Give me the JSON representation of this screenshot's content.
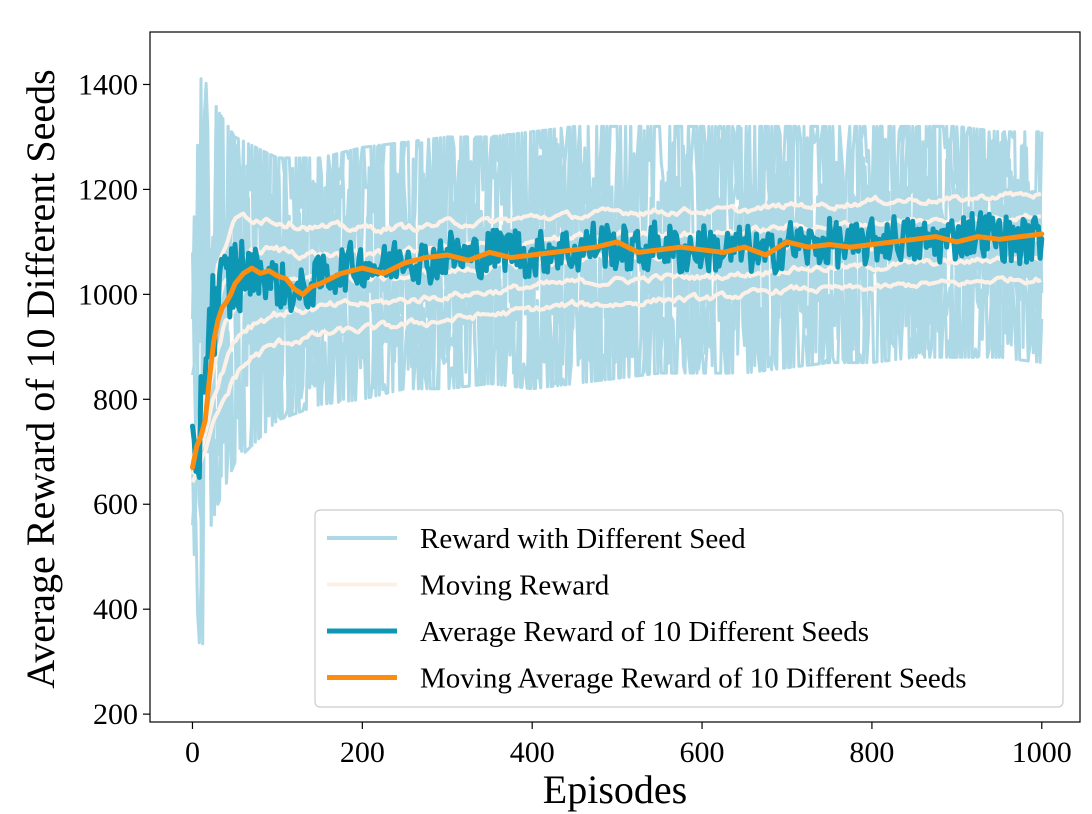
{
  "chart_data": {
    "type": "line",
    "xlabel": "Episodes",
    "ylabel": "Average Reward of 10 Different Seeds",
    "xlim": [
      -50,
      1045
    ],
    "ylim": [
      185,
      1500
    ],
    "x_ticks": [
      0,
      200,
      400,
      600,
      800,
      1000
    ],
    "y_ticks": [
      200,
      400,
      600,
      800,
      1000,
      1200,
      1400
    ],
    "grid": false,
    "legend_position": "lower-right",
    "colors": {
      "seed": "#add8e6",
      "moving_seed": "#fdf0e6",
      "average": "#0e97b5",
      "moving_average": "#fe8c0f"
    },
    "series": [
      {
        "name": "Reward with Different Seed",
        "x": [
          0,
          10,
          20,
          30,
          50,
          75,
          100,
          150,
          200,
          250,
          300,
          350,
          400,
          450,
          500,
          550,
          600,
          650,
          700,
          750,
          800,
          850,
          900,
          950,
          1000
        ],
        "low": [
          560,
          280,
          550,
          600,
          680,
          720,
          760,
          790,
          800,
          820,
          820,
          830,
          820,
          830,
          840,
          850,
          850,
          850,
          860,
          870,
          870,
          880,
          880,
          880,
          870
        ],
        "high": [
          1080,
          1420,
          1390,
          1350,
          1300,
          1280,
          1260,
          1260,
          1280,
          1290,
          1300,
          1300,
          1310,
          1320,
          1320,
          1320,
          1320,
          1320,
          1320,
          1320,
          1320,
          1320,
          1320,
          1310,
          1310
        ]
      },
      {
        "name": "Moving Reward",
        "x": [
          0,
          10,
          20,
          30,
          50,
          75,
          100,
          150,
          200,
          250,
          300,
          350,
          400,
          450,
          500,
          550,
          600,
          650,
          700,
          750,
          800,
          850,
          900,
          950,
          1000
        ],
        "low": [
          640,
          680,
          720,
          760,
          830,
          860,
          880,
          900,
          910,
          920,
          930,
          940,
          950,
          960,
          960,
          970,
          970,
          980,
          990,
          990,
          990,
          1000,
          1000,
          1010,
          1010
        ],
        "high": [
          700,
          900,
          1080,
          1150,
          1190,
          1180,
          1170,
          1150,
          1150,
          1150,
          1160,
          1160,
          1170,
          1170,
          1180,
          1180,
          1180,
          1180,
          1190,
          1190,
          1200,
          1200,
          1200,
          1210,
          1210
        ]
      },
      {
        "name": "Average Reward of 10 Different Seeds",
        "x": [
          0,
          5,
          10,
          20,
          30,
          40,
          50,
          60,
          75,
          100,
          125,
          150,
          175,
          200,
          225,
          250,
          275,
          300,
          325,
          350,
          375,
          400,
          425,
          450,
          475,
          500,
          525,
          550,
          575,
          600,
          625,
          650,
          675,
          700,
          725,
          750,
          775,
          800,
          825,
          850,
          875,
          900,
          925,
          950,
          975,
          1000
        ],
        "y": [
          680,
          560,
          820,
          950,
          990,
          1010,
          1040,
          1030,
          1050,
          1020,
          1000,
          1030,
          1050,
          1060,
          1050,
          1080,
          1060,
          1080,
          1070,
          1080,
          1090,
          1070,
          1090,
          1080,
          1100,
          1090,
          1080,
          1100,
          1080,
          1090,
          1080,
          1090,
          1070,
          1100,
          1090,
          1100,
          1090,
          1100,
          1110,
          1100,
          1100,
          1110,
          1120,
          1110,
          1100,
          1110
        ]
      },
      {
        "name": "Moving Average Reward of 10 Different Seeds",
        "x": [
          0,
          5,
          10,
          15,
          20,
          25,
          30,
          35,
          40,
          45,
          50,
          60,
          70,
          80,
          90,
          100,
          110,
          120,
          130,
          140,
          150,
          175,
          200,
          225,
          250,
          275,
          300,
          325,
          350,
          375,
          400,
          425,
          450,
          475,
          500,
          525,
          550,
          575,
          600,
          625,
          650,
          675,
          700,
          725,
          750,
          775,
          800,
          825,
          850,
          875,
          900,
          925,
          950,
          975,
          1000
        ],
        "y": [
          670,
          710,
          730,
          760,
          840,
          910,
          950,
          975,
          985,
          1000,
          1020,
          1040,
          1050,
          1040,
          1045,
          1035,
          1030,
          1010,
          1000,
          1015,
          1020,
          1040,
          1050,
          1040,
          1060,
          1070,
          1075,
          1065,
          1080,
          1070,
          1075,
          1080,
          1085,
          1090,
          1100,
          1080,
          1085,
          1090,
          1085,
          1080,
          1090,
          1075,
          1100,
          1090,
          1095,
          1090,
          1095,
          1100,
          1105,
          1110,
          1100,
          1110,
          1105,
          1110,
          1115
        ]
      }
    ]
  }
}
